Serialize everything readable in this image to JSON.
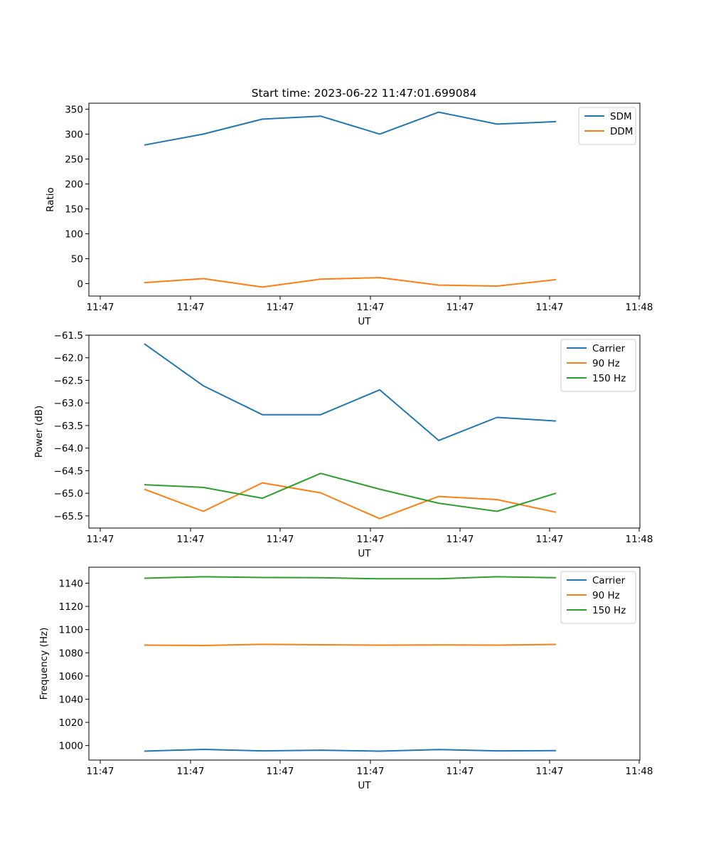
{
  "figure": {
    "title": "Start time: 2023-06-22 11:47:01.699084"
  },
  "chart_data": [
    {
      "type": "line",
      "xlabel": "UT",
      "ylabel": "Ratio",
      "xtick_labels": [
        "11:47",
        "11:47",
        "11:47",
        "11:47",
        "11:47",
        "11:47",
        "11:48"
      ],
      "yticks": [
        0,
        50,
        100,
        150,
        200,
        250,
        300,
        350
      ],
      "ylim": [
        -25,
        362
      ],
      "legend_position": "top-right",
      "grid": false,
      "series": [
        {
          "name": "SDM",
          "color": "#1f77b4",
          "values": [
            278,
            300,
            330,
            336,
            300,
            344,
            320,
            325
          ]
        },
        {
          "name": "DDM",
          "color": "#ff7f0e",
          "values": [
            2,
            10,
            -7,
            9,
            12,
            -3,
            -5,
            8
          ]
        }
      ]
    },
    {
      "type": "line",
      "xlabel": "UT",
      "ylabel": "Power (dB)",
      "xtick_labels": [
        "11:47",
        "11:47",
        "11:47",
        "11:47",
        "11:47",
        "11:47",
        "11:48"
      ],
      "yticks": [
        -65.5,
        -65.0,
        -64.5,
        -64.0,
        -63.5,
        -63.0,
        -62.5,
        -62.0,
        -61.5
      ],
      "ytick_labels": [
        "−65.5",
        "−65.0",
        "−64.5",
        "−64.0",
        "−63.5",
        "−63.0",
        "−62.5",
        "−62.0",
        "−61.5"
      ],
      "ylim": [
        -65.77,
        -61.5
      ],
      "legend_position": "top-right",
      "grid": false,
      "series": [
        {
          "name": "Carrier",
          "color": "#1f77b4",
          "values": [
            -61.69,
            -62.62,
            -63.26,
            -63.26,
            -62.71,
            -63.83,
            -63.32,
            -63.4
          ]
        },
        {
          "name": "90 Hz",
          "color": "#ff7f0e",
          "values": [
            -64.91,
            -65.4,
            -64.77,
            -64.99,
            -65.56,
            -65.07,
            -65.14,
            -65.42
          ]
        },
        {
          "name": "150 Hz",
          "color": "#2ca02c",
          "values": [
            -64.81,
            -64.87,
            -65.11,
            -64.56,
            -64.91,
            -65.22,
            -65.4,
            -65.0
          ]
        }
      ]
    },
    {
      "type": "line",
      "xlabel": "UT",
      "ylabel": "Frequency (Hz)",
      "xtick_labels": [
        "11:47",
        "11:47",
        "11:47",
        "11:47",
        "11:47",
        "11:47",
        "11:48"
      ],
      "yticks": [
        1000,
        1020,
        1040,
        1060,
        1080,
        1100,
        1120,
        1140
      ],
      "ylim": [
        987.5,
        1153.8
      ],
      "legend_position": "top-right",
      "grid": false,
      "series": [
        {
          "name": "Carrier",
          "color": "#1f77b4",
          "values": [
            995.2,
            996.7,
            995.4,
            996.0,
            995.2,
            996.6,
            995.4,
            995.6
          ]
        },
        {
          "name": "90 Hz",
          "color": "#ff7f0e",
          "values": [
            1086.6,
            1086.3,
            1087.3,
            1086.9,
            1086.6,
            1086.8,
            1086.6,
            1087.2
          ]
        },
        {
          "name": "150 Hz",
          "color": "#2ca02c",
          "values": [
            1144.3,
            1145.6,
            1144.9,
            1144.7,
            1143.8,
            1143.8,
            1145.6,
            1144.7
          ]
        }
      ]
    }
  ]
}
